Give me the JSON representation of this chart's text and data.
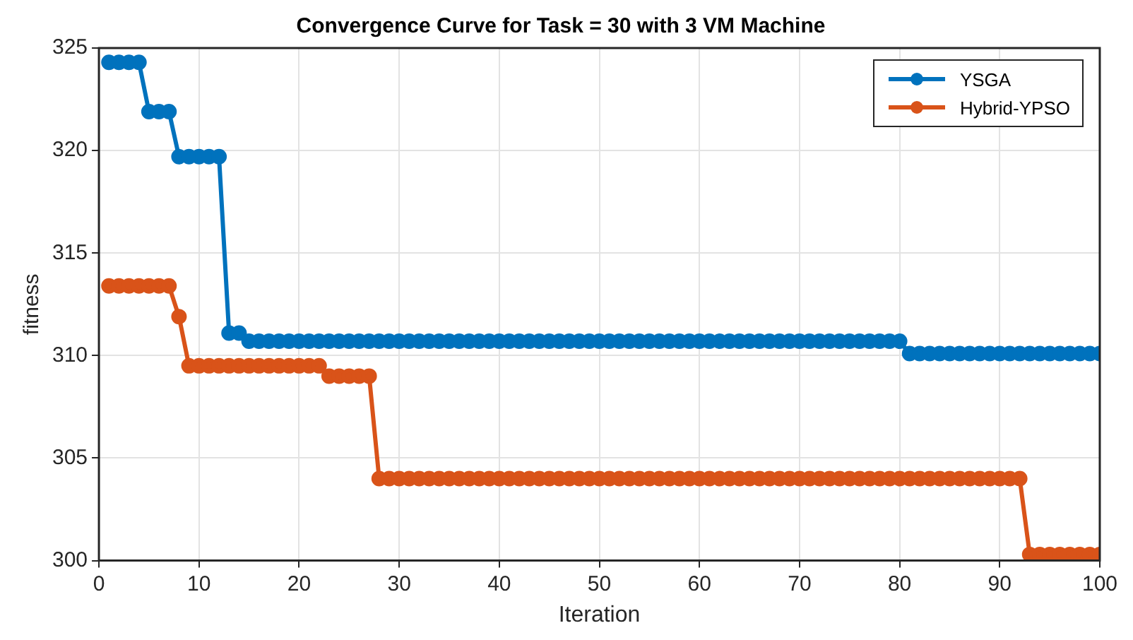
{
  "chart_data": {
    "type": "line",
    "title": "Convergence Curve for Task = 30 with 3 VM Machine",
    "xlabel": "Iteration",
    "ylabel": "fitness",
    "x": [
      1,
      2,
      3,
      4,
      5,
      6,
      7,
      8,
      9,
      10,
      11,
      12,
      13,
      14,
      15,
      16,
      17,
      18,
      19,
      20,
      21,
      22,
      23,
      24,
      25,
      26,
      27,
      28,
      29,
      30,
      31,
      32,
      33,
      34,
      35,
      36,
      37,
      38,
      39,
      40,
      41,
      42,
      43,
      44,
      45,
      46,
      47,
      48,
      49,
      50,
      51,
      52,
      53,
      54,
      55,
      56,
      57,
      58,
      59,
      60,
      61,
      62,
      63,
      64,
      65,
      66,
      67,
      68,
      69,
      70,
      71,
      72,
      73,
      74,
      75,
      76,
      77,
      78,
      79,
      80,
      81,
      82,
      83,
      84,
      85,
      86,
      87,
      88,
      89,
      90,
      91,
      92,
      93,
      94,
      95,
      96,
      97,
      98,
      99,
      100
    ],
    "series": [
      {
        "name": "YSGA",
        "color": "#0072bd",
        "values": [
          324.3,
          324.3,
          324.3,
          324.3,
          321.9,
          321.9,
          321.9,
          319.7,
          319.7,
          319.7,
          319.7,
          319.7,
          311.1,
          311.1,
          310.7,
          310.7,
          310.7,
          310.7,
          310.7,
          310.7,
          310.7,
          310.7,
          310.7,
          310.7,
          310.7,
          310.7,
          310.7,
          310.7,
          310.7,
          310.7,
          310.7,
          310.7,
          310.7,
          310.7,
          310.7,
          310.7,
          310.7,
          310.7,
          310.7,
          310.7,
          310.7,
          310.7,
          310.7,
          310.7,
          310.7,
          310.7,
          310.7,
          310.7,
          310.7,
          310.7,
          310.7,
          310.7,
          310.7,
          310.7,
          310.7,
          310.7,
          310.7,
          310.7,
          310.7,
          310.7,
          310.7,
          310.7,
          310.7,
          310.7,
          310.7,
          310.7,
          310.7,
          310.7,
          310.7,
          310.7,
          310.7,
          310.7,
          310.7,
          310.7,
          310.7,
          310.7,
          310.7,
          310.7,
          310.7,
          310.7,
          310.1,
          310.1,
          310.1,
          310.1,
          310.1,
          310.1,
          310.1,
          310.1,
          310.1,
          310.1,
          310.1,
          310.1,
          310.1,
          310.1,
          310.1,
          310.1,
          310.1,
          310.1,
          310.1,
          310.1
        ]
      },
      {
        "name": "Hybrid-YPSO",
        "color": "#d95319",
        "values": [
          313.4,
          313.4,
          313.4,
          313.4,
          313.4,
          313.4,
          313.4,
          311.9,
          309.5,
          309.5,
          309.5,
          309.5,
          309.5,
          309.5,
          309.5,
          309.5,
          309.5,
          309.5,
          309.5,
          309.5,
          309.5,
          309.5,
          309,
          309,
          309,
          309,
          309,
          304,
          304,
          304,
          304,
          304,
          304,
          304,
          304,
          304,
          304,
          304,
          304,
          304,
          304,
          304,
          304,
          304,
          304,
          304,
          304,
          304,
          304,
          304,
          304,
          304,
          304,
          304,
          304,
          304,
          304,
          304,
          304,
          304,
          304,
          304,
          304,
          304,
          304,
          304,
          304,
          304,
          304,
          304,
          304,
          304,
          304,
          304,
          304,
          304,
          304,
          304,
          304,
          304,
          304,
          304,
          304,
          304,
          304,
          304,
          304,
          304,
          304,
          304,
          304,
          304,
          300.3,
          300.3,
          300.3,
          300.3,
          300.3,
          300.3,
          300.3,
          300.3
        ]
      }
    ],
    "xlim": [
      0,
      100
    ],
    "xticks": [
      0,
      10,
      20,
      30,
      40,
      50,
      60,
      70,
      80,
      90,
      100
    ],
    "ylim": [
      300,
      325
    ],
    "yticks": [
      300,
      305,
      310,
      315,
      320,
      325
    ],
    "grid": true,
    "legend": "top right",
    "marker": "circle",
    "line_style": "solid"
  }
}
